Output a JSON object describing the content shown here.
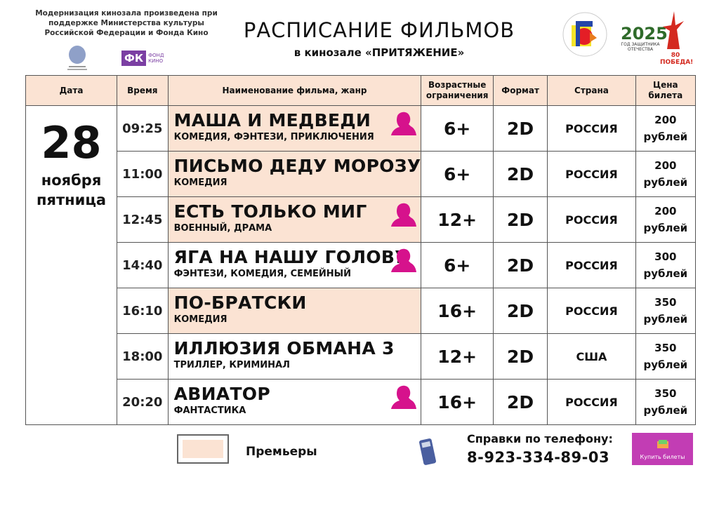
{
  "header": {
    "note": "Модернизация кинозала произведена при поддержке Министерства культуры Российской Федерации и Фонда Кино",
    "title": "РАСПИСАНИЕ ФИЛЬМОВ",
    "subtitle": "в кинозале «ПРИТЯЖЕНИЕ»",
    "fk_logo": "ФК",
    "fk_logo_sub": "ФОНД КИНО",
    "year_logo": "2025",
    "year_logo_sub": "ГОД ЗАЩИТНИКА ОТЕЧЕСТВА",
    "victory_logo": "80 ПОБЕДА!"
  },
  "columns": [
    "Дата",
    "Время",
    "Наименование фильма, жанр",
    "Возрастные ограничения",
    "Формат",
    "Страна",
    "Цена билета"
  ],
  "date": {
    "day": "28",
    "month": "ноября",
    "weekday": "пятница"
  },
  "rows": [
    {
      "time": "09:25",
      "title": "МАША И МЕДВЕДИ",
      "genre": "КОМЕДИЯ, ФЭНТЕЗИ, ПРИКЛЮЧЕНИЯ",
      "age": "6+",
      "format": "2D",
      "country": "РОССИЯ",
      "price": "200",
      "currency": "рублей",
      "premiere": true,
      "pushkin": true
    },
    {
      "time": "11:00",
      "title": "ПИСЬМО ДЕДУ МОРОЗУ",
      "genre": "КОМЕДИЯ",
      "age": "6+",
      "format": "2D",
      "country": "РОССИЯ",
      "price": "200",
      "currency": "рублей",
      "premiere": true,
      "pushkin": false
    },
    {
      "time": "12:45",
      "title": "ЕСТЬ ТОЛЬКО МИГ",
      "genre": "ВОЕННЫЙ, ДРАМА",
      "age": "12+",
      "format": "2D",
      "country": "РОССИЯ",
      "price": "200",
      "currency": "рублей",
      "premiere": true,
      "pushkin": true
    },
    {
      "time": "14:40",
      "title": "ЯГА НА НАШУ ГОЛОВУ",
      "genre": "ФЭНТЕЗИ, КОМЕДИЯ, СЕМЕЙНЫЙ",
      "age": "6+",
      "format": "2D",
      "country": "РОССИЯ",
      "price": "300",
      "currency": "рублей",
      "premiere": false,
      "pushkin": true
    },
    {
      "time": "16:10",
      "title": "ПО-БРАТСКИ",
      "genre": "КОМЕДИЯ",
      "age": "16+",
      "format": "2D",
      "country": "РОССИЯ",
      "price": "350",
      "currency": "рублей",
      "premiere": true,
      "pushkin": false
    },
    {
      "time": "18:00",
      "title": "ИЛЛЮЗИЯ ОБМАНА 3",
      "genre": "ТРИЛЛЕР, КРИМИНАЛ",
      "age": "12+",
      "format": "2D",
      "country": "США",
      "price": "350",
      "currency": "рублей",
      "premiere": false,
      "pushkin": false
    },
    {
      "time": "20:20",
      "title": "АВИАТОР",
      "genre": "ФАНТАСТИКА",
      "age": "16+",
      "format": "2D",
      "country": "РОССИЯ",
      "price": "350",
      "currency": "рублей",
      "premiere": false,
      "pushkin": true
    }
  ],
  "footer": {
    "legend": "Премьеры",
    "phone_label": "Справки  по телефону:",
    "phone": "8-923-334-89-03",
    "buy_button": "Купить билеты"
  },
  "colors": {
    "premiere": "#fbe3d3",
    "pushkin": "#d6128c",
    "buy": "#c23db4"
  }
}
